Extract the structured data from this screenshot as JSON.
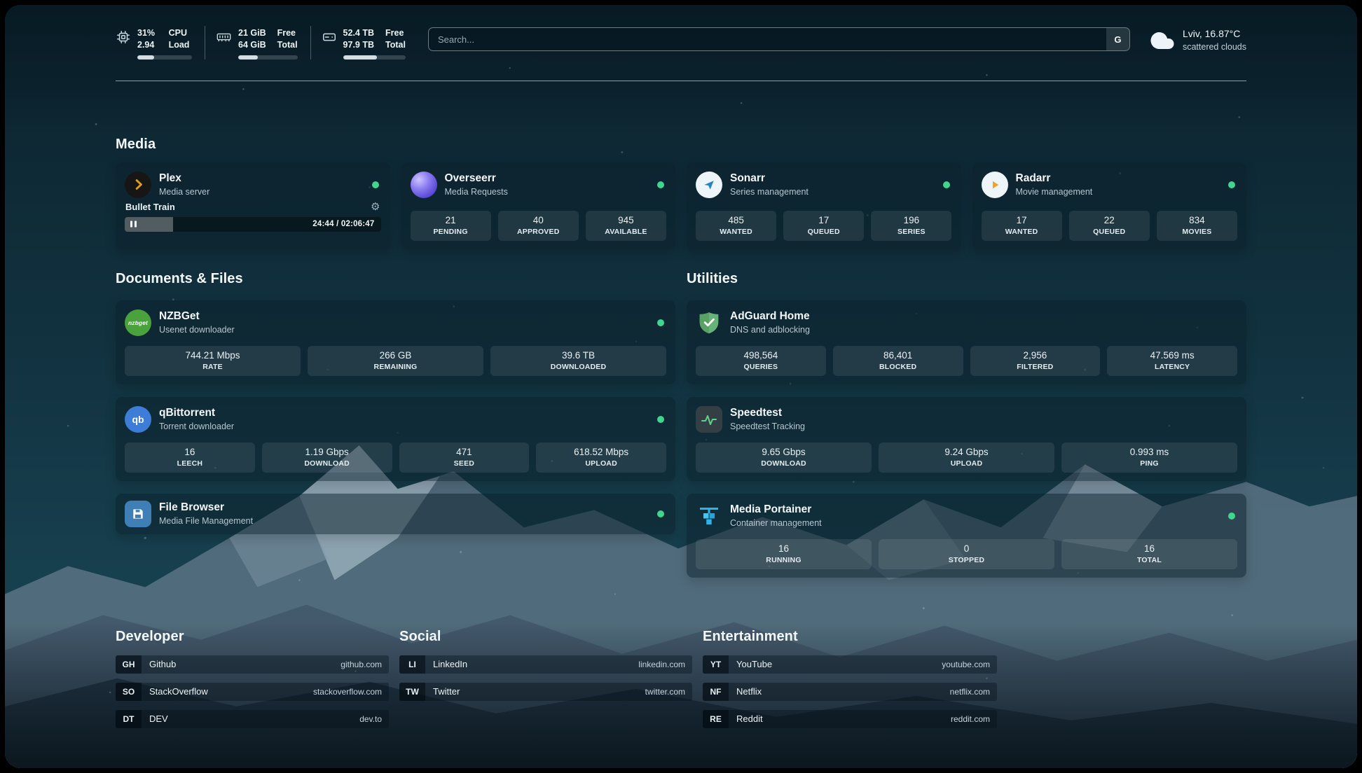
{
  "colors": {
    "status_green": "#3fd68f",
    "plex_amber": "#e5a00d",
    "sonarr_blue": "#2283c5",
    "radarr_amber": "#f0a32c",
    "nzbget_green": "#4aa23c",
    "qbittorrent_blue": "#3d7dd8",
    "filebrowser_blue": "#3f7fb5",
    "adguard_green": "#67b279",
    "speedtest_wave_green": "#5fd38a",
    "portainer_blue": "#2fb3e8"
  },
  "header": {
    "metrics": [
      {
        "name": "cpu",
        "row1_value": "31%",
        "row1_label": "CPU",
        "row2_value": "2.94",
        "row2_label": "Load",
        "progress": 31
      },
      {
        "name": "memory",
        "row1_value": "21 GiB",
        "row1_label": "Free",
        "row2_value": "64 GiB",
        "row2_label": "Total",
        "progress": 33
      },
      {
        "name": "storage",
        "row1_value": "52.4 TB",
        "row1_label": "Free",
        "row2_value": "97.9 TB",
        "row2_label": "Total",
        "progress": 54
      }
    ],
    "search": {
      "placeholder": "Search...",
      "engine_button": "G"
    },
    "weather": {
      "location": "Lviv, 16.87°C",
      "condition": "scattered clouds"
    }
  },
  "media": {
    "title": "Media",
    "plex": {
      "title": "Plex",
      "subtitle": "Media server",
      "now_playing": "Bullet Train",
      "time": "24:44 / 02:06:47",
      "progress": 19
    },
    "overseerr": {
      "title": "Overseerr",
      "subtitle": "Media Requests",
      "stats": [
        {
          "value": "21",
          "label": "PENDING"
        },
        {
          "value": "40",
          "label": "APPROVED"
        },
        {
          "value": "945",
          "label": "AVAILABLE"
        }
      ]
    },
    "sonarr": {
      "title": "Sonarr",
      "subtitle": "Series management",
      "stats": [
        {
          "value": "485",
          "label": "WANTED"
        },
        {
          "value": "17",
          "label": "QUEUED"
        },
        {
          "value": "196",
          "label": "SERIES"
        }
      ]
    },
    "radarr": {
      "title": "Radarr",
      "subtitle": "Movie management",
      "stats": [
        {
          "value": "17",
          "label": "WANTED"
        },
        {
          "value": "22",
          "label": "QUEUED"
        },
        {
          "value": "834",
          "label": "MOVIES"
        }
      ]
    }
  },
  "documents": {
    "title": "Documents & Files",
    "nzbget": {
      "title": "NZBGet",
      "subtitle": "Usenet downloader",
      "icon_text": "nzbget",
      "stats": [
        {
          "value": "744.21 Mbps",
          "label": "RATE"
        },
        {
          "value": "266 GB",
          "label": "REMAINING"
        },
        {
          "value": "39.6 TB",
          "label": "DOWNLOADED"
        }
      ]
    },
    "qbittorrent": {
      "title": "qBittorrent",
      "subtitle": "Torrent downloader",
      "icon_text": "qb",
      "stats": [
        {
          "value": "16",
          "label": "LEECH"
        },
        {
          "value": "1.19 Gbps",
          "label": "DOWNLOAD"
        },
        {
          "value": "471",
          "label": "SEED"
        },
        {
          "value": "618.52 Mbps",
          "label": "UPLOAD"
        }
      ]
    },
    "filebrowser": {
      "title": "File Browser",
      "subtitle": "Media File Management"
    }
  },
  "utilities": {
    "title": "Utilities",
    "adguard": {
      "title": "AdGuard Home",
      "subtitle": "DNS and adblocking",
      "stats": [
        {
          "value": "498,564",
          "label": "QUERIES"
        },
        {
          "value": "86,401",
          "label": "BLOCKED"
        },
        {
          "value": "2,956",
          "label": "FILTERED"
        },
        {
          "value": "47.569 ms",
          "label": "LATENCY"
        }
      ]
    },
    "speedtest": {
      "title": "Speedtest",
      "subtitle": "Speedtest Tracking",
      "stats": [
        {
          "value": "9.65 Gbps",
          "label": "DOWNLOAD"
        },
        {
          "value": "9.24 Gbps",
          "label": "UPLOAD"
        },
        {
          "value": "0.993 ms",
          "label": "PING"
        }
      ]
    },
    "portainer": {
      "title": "Media Portainer",
      "subtitle": "Container management",
      "stats": [
        {
          "value": "16",
          "label": "RUNNING"
        },
        {
          "value": "0",
          "label": "STOPPED"
        },
        {
          "value": "16",
          "label": "TOTAL"
        }
      ]
    }
  },
  "bookmarks": [
    {
      "title": "Developer",
      "items": [
        {
          "abbr": "GH",
          "name": "Github",
          "url": "github.com"
        },
        {
          "abbr": "SO",
          "name": "StackOverflow",
          "url": "stackoverflow.com"
        },
        {
          "abbr": "DT",
          "name": "DEV",
          "url": "dev.to"
        }
      ]
    },
    {
      "title": "Social",
      "items": [
        {
          "abbr": "LI",
          "name": "LinkedIn",
          "url": "linkedin.com"
        },
        {
          "abbr": "TW",
          "name": "Twitter",
          "url": "twitter.com"
        }
      ]
    },
    {
      "title": "Entertainment",
      "items": [
        {
          "abbr": "YT",
          "name": "YouTube",
          "url": "youtube.com"
        },
        {
          "abbr": "NF",
          "name": "Netflix",
          "url": "netflix.com"
        },
        {
          "abbr": "RE",
          "name": "Reddit",
          "url": "reddit.com"
        }
      ]
    }
  ]
}
